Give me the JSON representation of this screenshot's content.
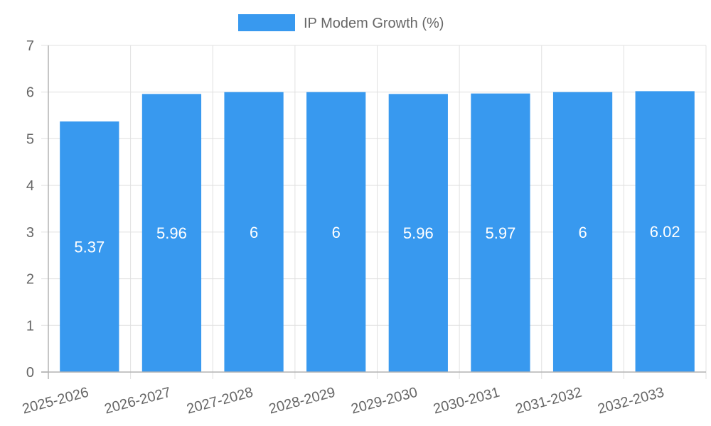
{
  "chart_data": {
    "type": "bar",
    "categories": [
      "2025-2026",
      "2026-2027",
      "2027-2028",
      "2028-2029",
      "2029-2030",
      "2030-2031",
      "2031-2032",
      "2032-2033"
    ],
    "series": [
      {
        "name": "IP Modem Growth (%)",
        "values": [
          5.37,
          5.96,
          6,
          6,
          5.96,
          5.97,
          6,
          6.02
        ],
        "color": "#3899ef"
      }
    ],
    "data_labels": [
      "5.37",
      "5.96",
      "6",
      "6",
      "5.96",
      "5.97",
      "6",
      "6.02"
    ],
    "ylim": [
      0,
      7
    ],
    "yticks": [
      "0",
      "1",
      "2",
      "3",
      "4",
      "5",
      "6",
      "7"
    ],
    "grid": true,
    "legend_position": "top"
  }
}
